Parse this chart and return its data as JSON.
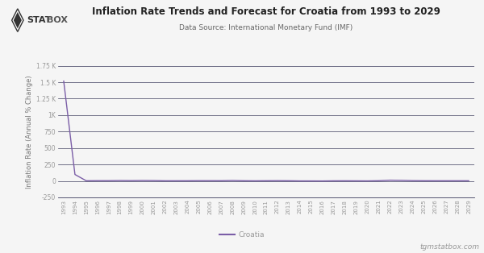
{
  "title": "Inflation Rate Trends and Forecast for Croatia from 1993 to 2029",
  "subtitle": "Data Source: International Monetary Fund (IMF)",
  "ylabel": "Inflation Rate (Annual % Change)",
  "watermark": "tgmstatbox.com",
  "legend_label": "Croatia",
  "line_color": "#7B5EA7",
  "background_color": "#1a1a2e",
  "plot_bg_color": "#1a1a2e",
  "grid_color": "#3a3a5a",
  "years": [
    1993,
    1994,
    1995,
    1996,
    1997,
    1998,
    1999,
    2000,
    2001,
    2002,
    2003,
    2004,
    2005,
    2006,
    2007,
    2008,
    2009,
    2010,
    2011,
    2012,
    2013,
    2014,
    2015,
    2016,
    2017,
    2018,
    2019,
    2020,
    2021,
    2022,
    2023,
    2024,
    2025,
    2026,
    2027,
    2028,
    2029
  ],
  "values": [
    1517.5,
    97.5,
    2.0,
    3.5,
    3.6,
    5.7,
    4.2,
    6.2,
    4.9,
    1.7,
    1.8,
    2.1,
    3.3,
    3.2,
    2.9,
    6.1,
    2.4,
    1.1,
    2.3,
    3.4,
    2.2,
    -0.2,
    -0.5,
    -1.1,
    1.1,
    1.5,
    0.8,
    0.1,
    2.7,
    10.8,
    8.4,
    4.0,
    2.5,
    2.0,
    2.0,
    2.0,
    2.0
  ],
  "ylim": [
    -250,
    1750
  ],
  "yticks": [
    -250,
    0,
    250,
    500,
    750,
    1000,
    1250,
    1500,
    1750
  ],
  "ytick_labels": [
    "-250",
    "0",
    "250",
    "500",
    "750",
    "1K",
    "1.25 K",
    "1.5 K",
    "1.75 K"
  ],
  "logo_text_stat": "STAT",
  "logo_text_box": "BOX",
  "logo_diamond_color": "#ffffff",
  "title_color": "#222222",
  "subtitle_color": "#666666",
  "tick_color": "#999999",
  "axis_label_color": "#777777",
  "fig_bg": "#f5f5f5",
  "plot_area_bg": "#f5f5f5"
}
